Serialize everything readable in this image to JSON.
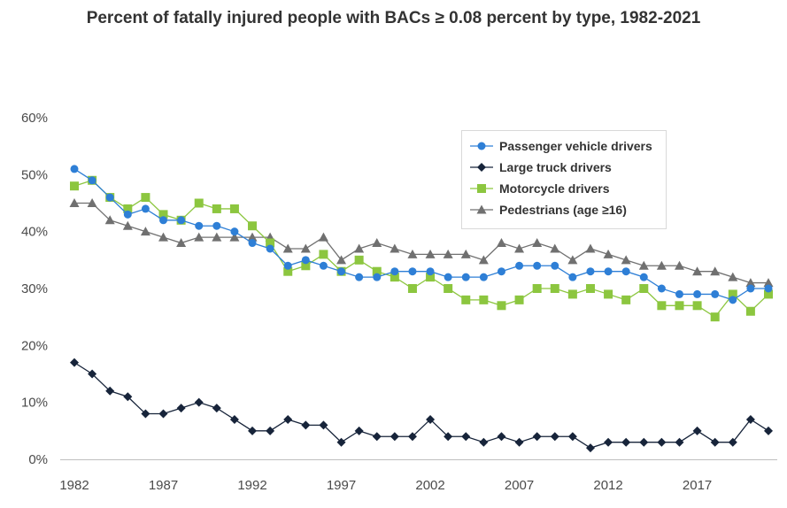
{
  "chart_data": {
    "type": "line",
    "title": "Percent of fatally injured people with BACs ≥ 0.08 percent by type, 1982-2021",
    "x_tick_labels": [
      "1982",
      "1987",
      "1992",
      "1997",
      "2002",
      "2007",
      "2012",
      "2017"
    ],
    "y_tick_labels": [
      "0%",
      "10%",
      "20%",
      "30%",
      "40%",
      "50%",
      "60%"
    ],
    "xlim": [
      1982,
      2021
    ],
    "ylim": [
      0,
      60
    ],
    "grid": false,
    "legend_position": "top-right",
    "x": [
      1982,
      1983,
      1984,
      1985,
      1986,
      1987,
      1988,
      1989,
      1990,
      1991,
      1992,
      1993,
      1994,
      1995,
      1996,
      1997,
      1998,
      1999,
      2000,
      2001,
      2002,
      2003,
      2004,
      2005,
      2006,
      2007,
      2008,
      2009,
      2010,
      2011,
      2012,
      2013,
      2014,
      2015,
      2016,
      2017,
      2018,
      2019,
      2020,
      2021
    ],
    "series": [
      {
        "name": "Passenger vehicle drivers",
        "color": "#2e7fd6",
        "marker": "circle",
        "values": [
          51,
          49,
          46,
          43,
          44,
          42,
          42,
          41,
          41,
          40,
          38,
          37,
          34,
          35,
          34,
          33,
          32,
          32,
          33,
          33,
          33,
          32,
          32,
          32,
          33,
          34,
          34,
          34,
          32,
          33,
          33,
          33,
          32,
          30,
          29,
          29,
          29,
          28,
          30,
          30
        ]
      },
      {
        "name": "Large truck drivers",
        "color": "#17243a",
        "marker": "diamond",
        "values": [
          17,
          15,
          12,
          11,
          8,
          8,
          9,
          10,
          9,
          7,
          5,
          5,
          7,
          6,
          6,
          3,
          5,
          4,
          4,
          4,
          7,
          4,
          4,
          3,
          4,
          3,
          4,
          4,
          4,
          2,
          3,
          3,
          3,
          3,
          3,
          5,
          3,
          3,
          7,
          5
        ]
      },
      {
        "name": "Motorcycle drivers",
        "color": "#8cc63f",
        "marker": "square",
        "values": [
          48,
          49,
          46,
          44,
          46,
          43,
          42,
          45,
          44,
          44,
          41,
          38,
          33,
          34,
          36,
          33,
          35,
          33,
          32,
          30,
          32,
          30,
          28,
          28,
          27,
          28,
          30,
          30,
          29,
          30,
          29,
          28,
          30,
          27,
          27,
          27,
          25,
          29,
          26,
          29
        ]
      },
      {
        "name": "Pedestrians (age ≥16)",
        "color": "#707070",
        "marker": "triangle",
        "values": [
          45,
          45,
          42,
          41,
          40,
          39,
          38,
          39,
          39,
          39,
          39,
          39,
          37,
          37,
          39,
          35,
          37,
          38,
          37,
          36,
          36,
          36,
          36,
          35,
          38,
          37,
          38,
          37,
          35,
          37,
          36,
          35,
          34,
          34,
          34,
          33,
          33,
          32,
          31,
          31
        ]
      }
    ]
  }
}
